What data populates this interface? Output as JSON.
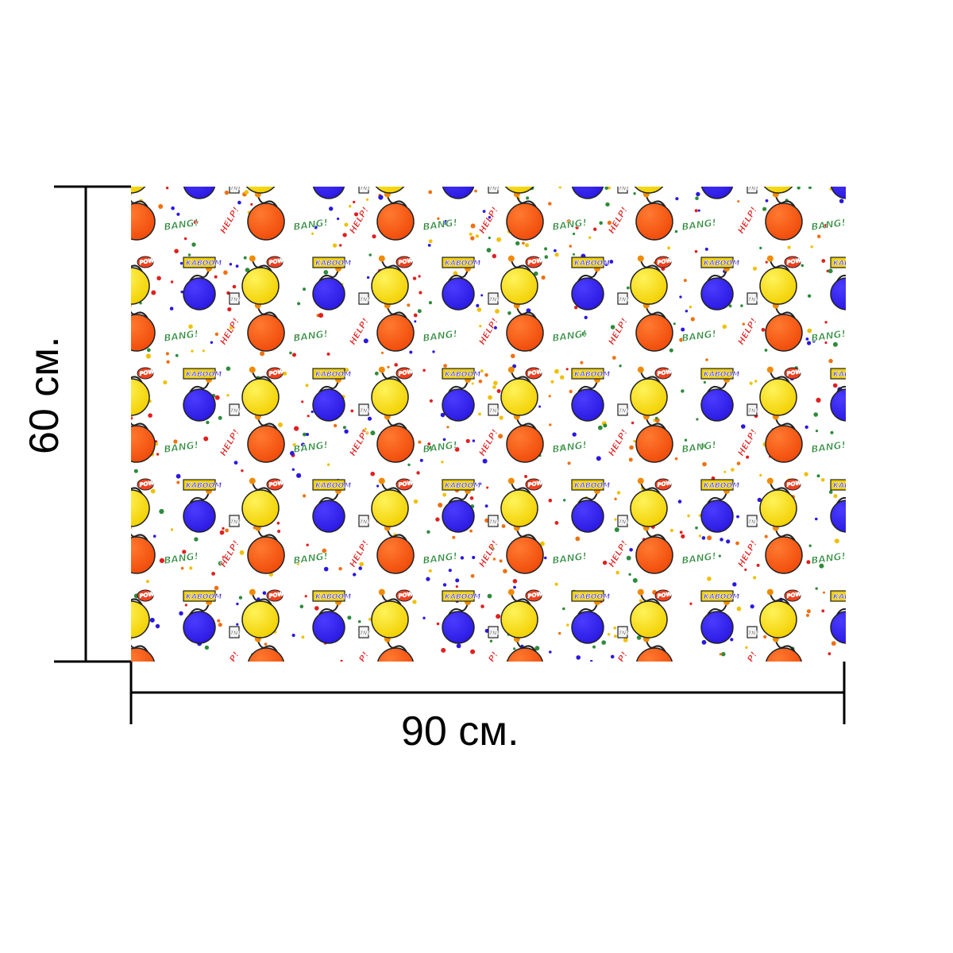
{
  "dimensions": {
    "width_label": "90 см.",
    "height_label": "60 см."
  },
  "pattern": {
    "words": [
      "BANG!",
      "HELP!",
      "KABOOM",
      "POW",
      "TNT"
    ],
    "colors": {
      "blue_bomb": "#2a18e0",
      "yellow_bomb": "#f6e600",
      "orange_bomb": "#f04a0a",
      "kaboom_box": "#f0d000",
      "bang_text": "#2e8b3c",
      "help_text": "#e02020",
      "outline": "#222222"
    }
  }
}
